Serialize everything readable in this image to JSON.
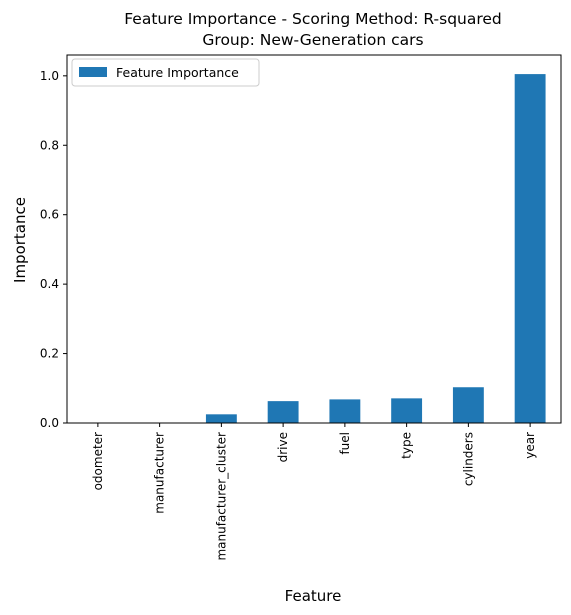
{
  "chart_data": {
    "type": "bar",
    "title_line1": "Feature Importance - Scoring Method: R-squared",
    "title_line2": "Group: New-Generation cars",
    "xlabel": "Feature",
    "ylabel": "Importance",
    "categories": [
      "odometer",
      "manufacturer",
      "manufacturer_cluster",
      "drive",
      "fuel",
      "type",
      "cylinders",
      "year"
    ],
    "series": [
      {
        "name": "Feature Importance",
        "color": "#1f77b4",
        "values": [
          0.0,
          0.0,
          0.025,
          0.063,
          0.068,
          0.071,
          0.103,
          1.005
        ]
      }
    ],
    "ylim": [
      0,
      1.06
    ],
    "yticks": [
      0.0,
      0.2,
      0.4,
      0.6,
      0.8,
      1.0
    ],
    "ytick_labels": [
      "0.0",
      "0.2",
      "0.4",
      "0.6",
      "0.8",
      "1.0"
    ],
    "legend_position": "upper-left",
    "grid": false
  }
}
